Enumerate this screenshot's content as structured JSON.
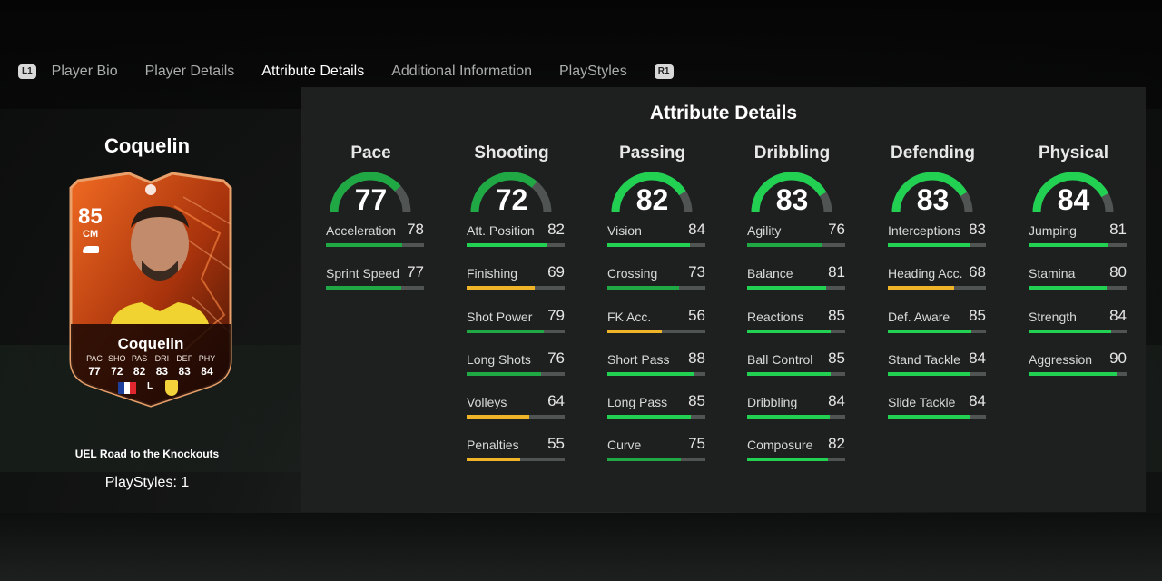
{
  "tabs": {
    "left_button": "L1",
    "right_button": "R1",
    "items": [
      {
        "label": "Player Bio"
      },
      {
        "label": "Player Details"
      },
      {
        "label": "Attribute Details",
        "active": true
      },
      {
        "label": "Additional Information"
      },
      {
        "label": "PlayStyles"
      }
    ]
  },
  "player": {
    "name": "Coquelin",
    "promo": "UEL Road to the Knockouts",
    "playstyles_text": "PlayStyles: 1"
  },
  "card": {
    "rating": "85",
    "position": "CM",
    "name": "Coquelin",
    "stat_labels": [
      "PAC",
      "SHO",
      "PAS",
      "DRI",
      "DEF",
      "PHY"
    ],
    "stat_values": [
      "77",
      "72",
      "82",
      "83",
      "83",
      "84"
    ],
    "league_text": "LALIGA",
    "colors": {
      "primary": "#e4561c",
      "dark": "#2b0d04",
      "border": "#e9a06a"
    }
  },
  "panel": {
    "title": "Attribute Details",
    "colors": {
      "high": "#22d052",
      "mid": "#1fa843",
      "low": "#f0b429",
      "track": "#505452"
    },
    "categories": [
      {
        "name": "Pace",
        "value": 77,
        "stats": [
          {
            "label": "Acceleration",
            "value": 78
          },
          {
            "label": "Sprint Speed",
            "value": 77
          }
        ]
      },
      {
        "name": "Shooting",
        "value": 72,
        "stats": [
          {
            "label": "Att. Position",
            "value": 82
          },
          {
            "label": "Finishing",
            "value": 69
          },
          {
            "label": "Shot Power",
            "value": 79
          },
          {
            "label": "Long Shots",
            "value": 76
          },
          {
            "label": "Volleys",
            "value": 64
          },
          {
            "label": "Penalties",
            "value": 55
          }
        ]
      },
      {
        "name": "Passing",
        "value": 82,
        "stats": [
          {
            "label": "Vision",
            "value": 84
          },
          {
            "label": "Crossing",
            "value": 73
          },
          {
            "label": "FK Acc.",
            "value": 56
          },
          {
            "label": "Short Pass",
            "value": 88
          },
          {
            "label": "Long Pass",
            "value": 85
          },
          {
            "label": "Curve",
            "value": 75
          }
        ]
      },
      {
        "name": "Dribbling",
        "value": 83,
        "stats": [
          {
            "label": "Agility",
            "value": 76
          },
          {
            "label": "Balance",
            "value": 81
          },
          {
            "label": "Reactions",
            "value": 85
          },
          {
            "label": "Ball Control",
            "value": 85
          },
          {
            "label": "Dribbling",
            "value": 84
          },
          {
            "label": "Composure",
            "value": 82
          }
        ]
      },
      {
        "name": "Defending",
        "value": 83,
        "stats": [
          {
            "label": "Interceptions",
            "value": 83
          },
          {
            "label": "Heading Acc.",
            "value": 68
          },
          {
            "label": "Def. Aware",
            "value": 85
          },
          {
            "label": "Stand Tackle",
            "value": 84
          },
          {
            "label": "Slide Tackle",
            "value": 84
          }
        ]
      },
      {
        "name": "Physical",
        "value": 84,
        "stats": [
          {
            "label": "Jumping",
            "value": 81
          },
          {
            "label": "Stamina",
            "value": 80
          },
          {
            "label": "Strength",
            "value": 84
          },
          {
            "label": "Aggression",
            "value": 90
          }
        ]
      }
    ]
  }
}
